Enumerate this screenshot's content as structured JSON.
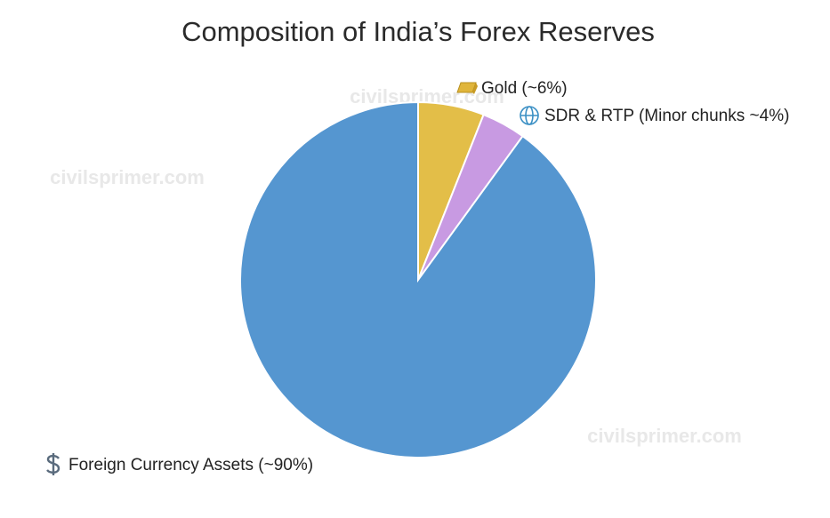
{
  "chart_data": {
    "type": "pie",
    "title": "Composition of India’s Forex Reserves",
    "categories": [
      "Gold (~6%)",
      "SDR & RTP (Minor chunks ~4%)",
      "Foreign Currency Assets (~90%)"
    ],
    "values": [
      6,
      4,
      90
    ],
    "colors": [
      "#e3be48",
      "#c89ae2",
      "#5596d0"
    ],
    "watermarks": [
      "civilsprimer.com",
      "civilsprimer.com",
      "civilsprimer.com"
    ]
  }
}
